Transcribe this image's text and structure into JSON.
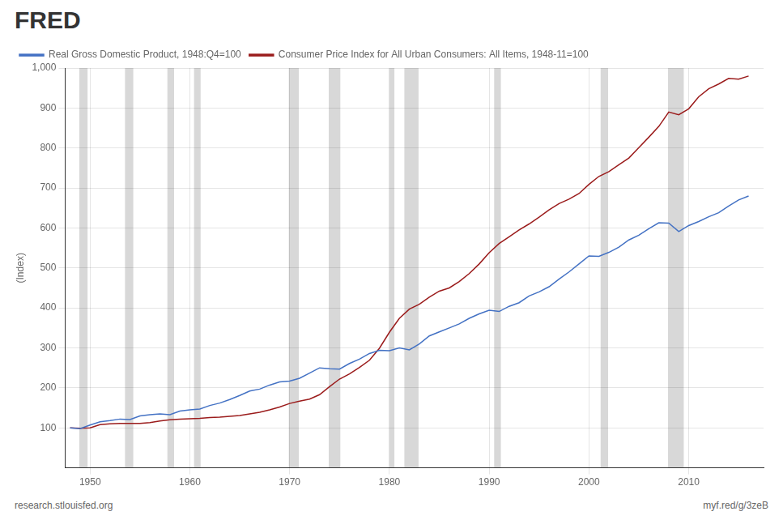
{
  "chart_data": {
    "type": "line",
    "ylabel": "(Index)",
    "annotations": [
      "FRED",
      "research.stlouisfed.org",
      "myf.red/g/3zeB"
    ],
    "x": [
      1948,
      1949,
      1950,
      1951,
      1952,
      1953,
      1954,
      1955,
      1956,
      1957,
      1958,
      1959,
      1960,
      1961,
      1962,
      1963,
      1964,
      1965,
      1966,
      1967,
      1968,
      1969,
      1970,
      1971,
      1972,
      1973,
      1974,
      1975,
      1976,
      1977,
      1978,
      1979,
      1980,
      1981,
      1982,
      1983,
      1984,
      1985,
      1986,
      1987,
      1988,
      1989,
      1990,
      1991,
      1992,
      1993,
      1994,
      1995,
      1996,
      1997,
      1998,
      1999,
      2000,
      2001,
      2002,
      2003,
      2004,
      2005,
      2006,
      2007,
      2008,
      2009,
      2010,
      2011,
      2012,
      2013,
      2014,
      2015,
      2016
    ],
    "series": [
      {
        "name": "Real Gross Domestic Product, 1948:Q4=100",
        "color": "#4472c4",
        "values": [
          100,
          98,
          107,
          115,
          118,
          122,
          121,
          130,
          133,
          135,
          133,
          142,
          145,
          147,
          156,
          162,
          171,
          181,
          192,
          197,
          207,
          215,
          217,
          224,
          237,
          250,
          248,
          247,
          261,
          272,
          286,
          294,
          293,
          300,
          295,
          310,
          330,
          340,
          350,
          360,
          374,
          385,
          394,
          391,
          404,
          413,
          430,
          440,
          453,
          472,
          490,
          510,
          530,
          529,
          539,
          552,
          570,
          582,
          598,
          613,
          612,
          591,
          606,
          616,
          628,
          638,
          655,
          670,
          680
        ]
      },
      {
        "name": "Consumer Price Index for All Urban Consumers: All Items, 1948-11=100",
        "color": "#9b1c1c",
        "values": [
          100,
          99,
          100,
          108,
          110,
          111,
          111,
          111,
          113,
          117,
          120,
          122,
          123,
          124,
          126,
          127,
          129,
          131,
          135,
          139,
          145,
          152,
          161,
          167,
          172,
          183,
          203,
          222,
          235,
          251,
          269,
          299,
          339,
          374,
          397,
          409,
          427,
          442,
          450,
          466,
          486,
          510,
          538,
          561,
          578,
          595,
          610,
          627,
          645,
          661,
          672,
          686,
          709,
          729,
          741,
          758,
          775,
          801,
          827,
          854,
          890,
          883,
          898,
          928,
          948,
          960,
          974,
          972,
          980
        ]
      }
    ],
    "recession_shades": [
      [
        1948.92,
        1949.75
      ],
      [
        1953.5,
        1954.33
      ],
      [
        1957.75,
        1958.42
      ],
      [
        1960.42,
        1961.08
      ],
      [
        1969.92,
        1970.92
      ],
      [
        1973.92,
        1975.08
      ],
      [
        1980.0,
        1980.5
      ],
      [
        1981.5,
        1982.92
      ],
      [
        1990.5,
        1991.17
      ],
      [
        2001.17,
        2001.92
      ],
      [
        2007.92,
        2009.5
      ]
    ],
    "xlim": [
      1947.5,
      2017.5
    ],
    "xticks": [
      1950,
      1960,
      1970,
      1980,
      1990,
      2000,
      2010
    ],
    "ylim": [
      0,
      1000
    ],
    "yticks": [
      100,
      200,
      300,
      400,
      500,
      600,
      700,
      800,
      900,
      {
        "value": 1000,
        "label": "1,000"
      }
    ],
    "grid": true,
    "legend": "top"
  }
}
